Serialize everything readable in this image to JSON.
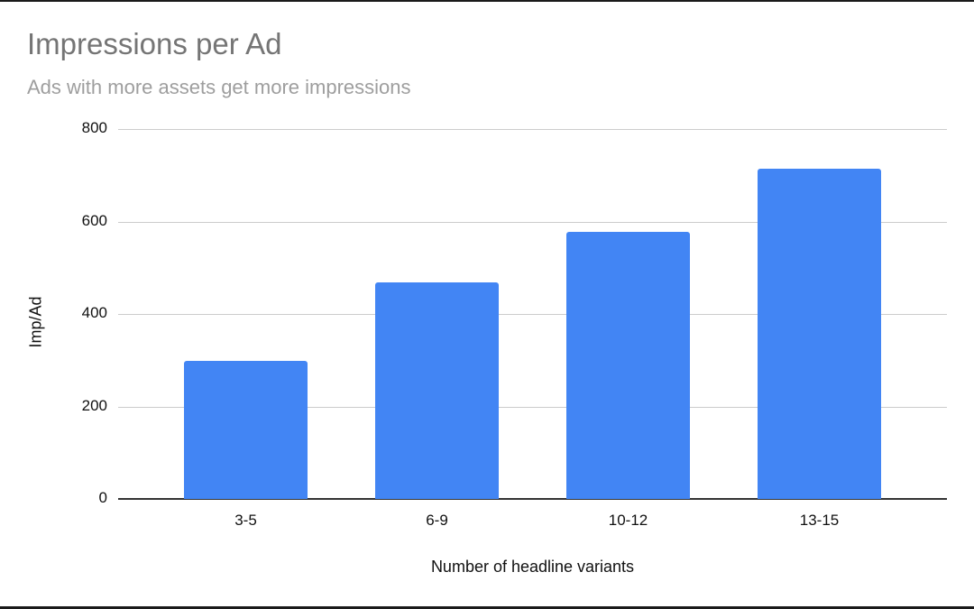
{
  "chart": {
    "title": "Impressions per Ad",
    "subtitle": "Ads with more assets get more impressions",
    "xlabel": "Number of headline variants",
    "ylabel": "Imp/Ad",
    "bar_color": "#4285f4",
    "yticks": [
      "0",
      "200",
      "400",
      "600",
      "800"
    ],
    "categories": [
      "3-5",
      "6-9",
      "10-12",
      "13-15"
    ]
  },
  "chart_data": {
    "type": "bar",
    "title": "Impressions per Ad",
    "subtitle": "Ads with more assets get more impressions",
    "categories": [
      "3-5",
      "6-9",
      "10-12",
      "13-15"
    ],
    "values": [
      298,
      468,
      578,
      714
    ],
    "xlabel": "Number of headline variants",
    "ylabel": "Imp/Ad",
    "ylim": [
      0,
      800
    ],
    "yticks": [
      0,
      200,
      400,
      600,
      800
    ],
    "grid": true,
    "legend": "none",
    "colors": [
      "#4285f4"
    ]
  }
}
